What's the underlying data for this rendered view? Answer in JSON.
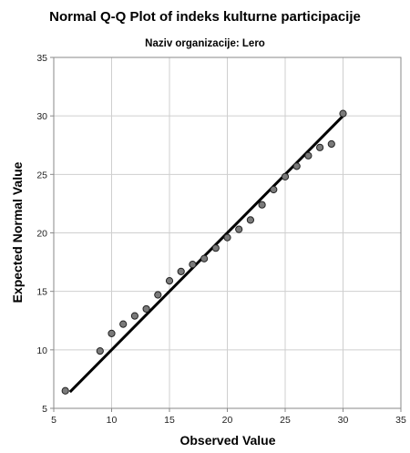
{
  "chart_data": {
    "type": "scatter",
    "title": "Normal Q-Q Plot of indeks kulturne participacije",
    "subtitle": "Naziv organizacije: Lero",
    "xlabel": "Observed Value",
    "ylabel": "Expected Normal Value",
    "xlim": [
      5,
      35
    ],
    "ylim": [
      5,
      35
    ],
    "xticks": [
      "5",
      "10",
      "15",
      "20",
      "25",
      "30",
      "35"
    ],
    "yticks": [
      "5",
      "10",
      "15",
      "20",
      "25",
      "30",
      "35"
    ],
    "grid": true,
    "points": [
      {
        "x": 6,
        "y": 6.5
      },
      {
        "x": 9,
        "y": 9.9
      },
      {
        "x": 10,
        "y": 11.4
      },
      {
        "x": 11,
        "y": 12.2
      },
      {
        "x": 12,
        "y": 12.9
      },
      {
        "x": 13,
        "y": 13.5
      },
      {
        "x": 14,
        "y": 14.7
      },
      {
        "x": 15,
        "y": 15.9
      },
      {
        "x": 16,
        "y": 16.7
      },
      {
        "x": 17,
        "y": 17.3
      },
      {
        "x": 18,
        "y": 17.8
      },
      {
        "x": 19,
        "y": 18.7
      },
      {
        "x": 20,
        "y": 19.6
      },
      {
        "x": 21,
        "y": 20.3
      },
      {
        "x": 22,
        "y": 21.1
      },
      {
        "x": 23,
        "y": 22.4
      },
      {
        "x": 24,
        "y": 23.7
      },
      {
        "x": 25,
        "y": 24.8
      },
      {
        "x": 26,
        "y": 25.7
      },
      {
        "x": 27,
        "y": 26.6
      },
      {
        "x": 28,
        "y": 27.3
      },
      {
        "x": 29,
        "y": 27.6
      },
      {
        "x": 30,
        "y": 30.2
      }
    ],
    "reference_line": {
      "x": [
        6.4,
        30
      ],
      "y": [
        6.4,
        30
      ]
    },
    "colors": {
      "point_fill": "#7a7a7a",
      "point_stroke": "#222222",
      "line": "#000000",
      "grid": "#cfcfcf",
      "frame": "#8a8a8a"
    }
  }
}
